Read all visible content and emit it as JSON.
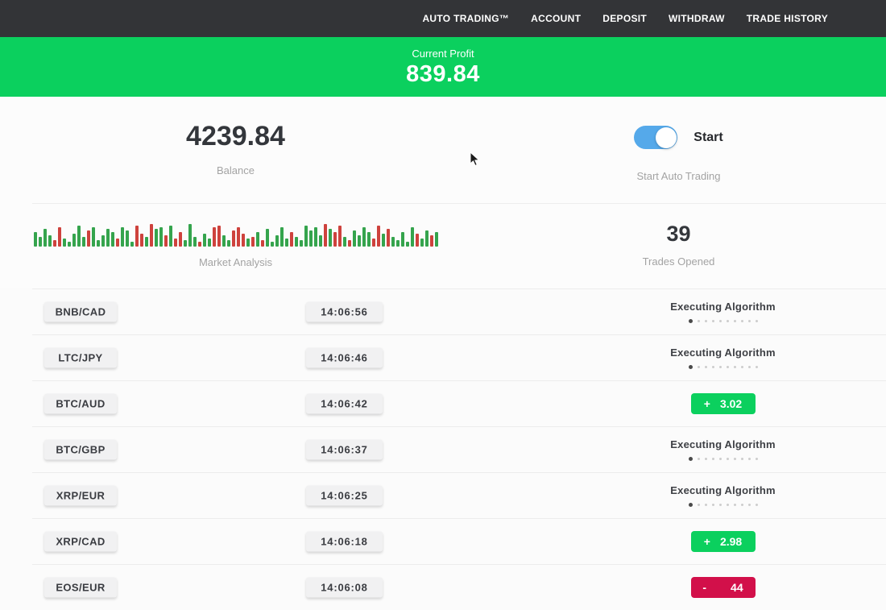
{
  "colors": {
    "navbar_bg": "#333437",
    "accent_green": "#0bd05e",
    "loss_red": "#d2104a",
    "toggle_blue": "#55a9ea",
    "bar_green": "#35a44d",
    "bar_red": "#ce423d"
  },
  "navbar": {
    "items": [
      "AUTO TRADING™",
      "ACCOUNT",
      "DEPOSIT",
      "WITHDRAW",
      "TRADE HISTORY"
    ]
  },
  "banner": {
    "label": "Current Profit",
    "value": "839.84"
  },
  "overview": {
    "balance_value": "4239.84",
    "balance_label": "Balance",
    "toggle_text": "Start",
    "toggle_caption": "Start Auto Trading",
    "toggle_on": true,
    "market_label": "Market Analysis",
    "trades_opened_value": "39",
    "trades_opened_label": "Trades Opened"
  },
  "market_bars": [
    [
      18,
      "g"
    ],
    [
      12,
      "g"
    ],
    [
      22,
      "g"
    ],
    [
      14,
      "g"
    ],
    [
      8,
      "r"
    ],
    [
      24,
      "r"
    ],
    [
      10,
      "g"
    ],
    [
      6,
      "g"
    ],
    [
      16,
      "g"
    ],
    [
      26,
      "g"
    ],
    [
      12,
      "g"
    ],
    [
      20,
      "r"
    ],
    [
      24,
      "g"
    ],
    [
      8,
      "g"
    ],
    [
      14,
      "g"
    ],
    [
      22,
      "g"
    ],
    [
      18,
      "g"
    ],
    [
      10,
      "r"
    ],
    [
      24,
      "g"
    ],
    [
      20,
      "g"
    ],
    [
      6,
      "g"
    ],
    [
      26,
      "r"
    ],
    [
      16,
      "r"
    ],
    [
      12,
      "g"
    ],
    [
      28,
      "r"
    ],
    [
      22,
      "g"
    ],
    [
      24,
      "g"
    ],
    [
      14,
      "r"
    ],
    [
      26,
      "g"
    ],
    [
      10,
      "r"
    ],
    [
      18,
      "r"
    ],
    [
      8,
      "g"
    ],
    [
      28,
      "g"
    ],
    [
      12,
      "g"
    ],
    [
      6,
      "r"
    ],
    [
      16,
      "g"
    ],
    [
      10,
      "g"
    ],
    [
      24,
      "r"
    ],
    [
      26,
      "r"
    ],
    [
      14,
      "g"
    ],
    [
      8,
      "g"
    ],
    [
      20,
      "r"
    ],
    [
      24,
      "r"
    ],
    [
      16,
      "r"
    ],
    [
      10,
      "g"
    ],
    [
      12,
      "r"
    ],
    [
      18,
      "g"
    ],
    [
      8,
      "r"
    ],
    [
      22,
      "g"
    ],
    [
      6,
      "g"
    ],
    [
      14,
      "g"
    ],
    [
      24,
      "g"
    ],
    [
      10,
      "g"
    ],
    [
      18,
      "r"
    ],
    [
      12,
      "g"
    ],
    [
      8,
      "g"
    ],
    [
      26,
      "g"
    ],
    [
      20,
      "g"
    ],
    [
      24,
      "g"
    ],
    [
      14,
      "g"
    ],
    [
      28,
      "r"
    ],
    [
      22,
      "g"
    ],
    [
      18,
      "r"
    ],
    [
      26,
      "r"
    ],
    [
      12,
      "g"
    ],
    [
      8,
      "r"
    ],
    [
      20,
      "g"
    ],
    [
      14,
      "g"
    ],
    [
      24,
      "g"
    ],
    [
      18,
      "g"
    ],
    [
      10,
      "r"
    ],
    [
      26,
      "r"
    ],
    [
      16,
      "g"
    ],
    [
      22,
      "r"
    ],
    [
      12,
      "g"
    ],
    [
      8,
      "g"
    ],
    [
      18,
      "g"
    ],
    [
      6,
      "g"
    ],
    [
      24,
      "g"
    ],
    [
      16,
      "r"
    ],
    [
      10,
      "g"
    ],
    [
      20,
      "g"
    ],
    [
      14,
      "r"
    ],
    [
      18,
      "g"
    ]
  ],
  "trade_status": {
    "executing_label": "Executing Algorithm",
    "dots_total": 10,
    "dots_active": 1
  },
  "trades": [
    {
      "pair": "BNB/CAD",
      "time": "14:06:56",
      "status": "executing",
      "sign": "",
      "value": ""
    },
    {
      "pair": "LTC/JPY",
      "time": "14:06:46",
      "status": "executing",
      "sign": "",
      "value": ""
    },
    {
      "pair": "BTC/AUD",
      "time": "14:06:42",
      "status": "profit",
      "sign": "+",
      "value": "3.02"
    },
    {
      "pair": "BTC/GBP",
      "time": "14:06:37",
      "status": "executing",
      "sign": "",
      "value": ""
    },
    {
      "pair": "XRP/EUR",
      "time": "14:06:25",
      "status": "executing",
      "sign": "",
      "value": ""
    },
    {
      "pair": "XRP/CAD",
      "time": "14:06:18",
      "status": "profit",
      "sign": "+",
      "value": "2.98"
    },
    {
      "pair": "EOS/EUR",
      "time": "14:06:08",
      "status": "loss",
      "sign": "-",
      "value": "44"
    }
  ]
}
